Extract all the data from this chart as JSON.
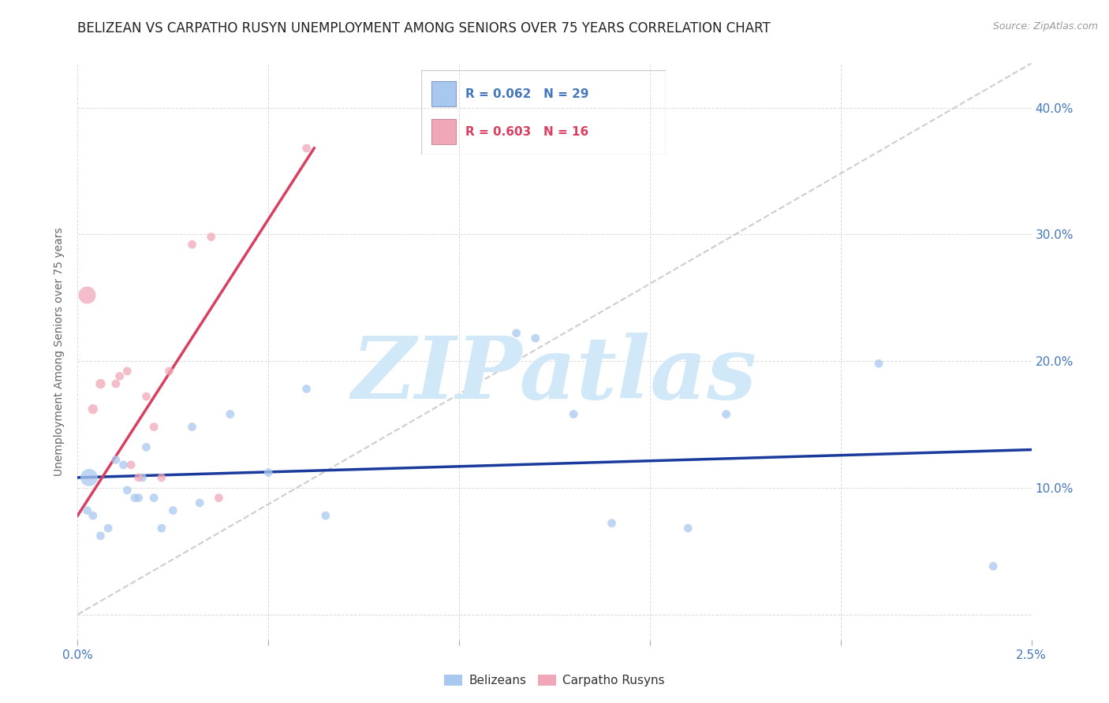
{
  "title": "BELIZEAN VS CARPATHO RUSYN UNEMPLOYMENT AMONG SENIORS OVER 75 YEARS CORRELATION CHART",
  "source": "Source: ZipAtlas.com",
  "ylabel": "Unemployment Among Seniors over 75 years",
  "xlim": [
    0.0,
    0.025
  ],
  "ylim": [
    -0.02,
    0.435
  ],
  "belizean_color": "#a8c8f0",
  "carpatho_color": "#f0a8b8",
  "blue_line_color": "#1a3a9c",
  "pink_line_color": "#d94060",
  "diag_line_color": "#c8c8c8",
  "legend_R_blue": "R = 0.062",
  "legend_N_blue": "N = 29",
  "legend_R_pink": "R = 0.603",
  "legend_N_pink": "N = 16",
  "watermark": "ZIPatlas",
  "watermark_color": "#d0e8f8",
  "belizean_x": [
    0.00025,
    0.0004,
    0.0006,
    0.0008,
    0.001,
    0.0012,
    0.0013,
    0.0015,
    0.0016,
    0.0018,
    0.002,
    0.0022,
    0.0025,
    0.003,
    0.0032,
    0.004,
    0.005,
    0.006,
    0.0065,
    0.0115,
    0.012,
    0.013,
    0.014,
    0.016,
    0.017,
    0.021,
    0.024,
    0.0003,
    0.0017
  ],
  "belizean_y": [
    0.082,
    0.078,
    0.062,
    0.068,
    0.122,
    0.118,
    0.098,
    0.092,
    0.092,
    0.132,
    0.092,
    0.068,
    0.082,
    0.148,
    0.088,
    0.158,
    0.112,
    0.178,
    0.078,
    0.222,
    0.218,
    0.158,
    0.072,
    0.068,
    0.158,
    0.198,
    0.038,
    0.108,
    0.108
  ],
  "belizean_sizes": [
    60,
    60,
    60,
    60,
    60,
    60,
    60,
    60,
    60,
    60,
    60,
    60,
    60,
    60,
    60,
    60,
    60,
    60,
    60,
    60,
    60,
    60,
    60,
    60,
    60,
    60,
    60,
    250,
    60
  ],
  "carpatho_x": [
    0.00025,
    0.0004,
    0.0006,
    0.001,
    0.0011,
    0.0013,
    0.0014,
    0.0016,
    0.0018,
    0.002,
    0.0022,
    0.0024,
    0.003,
    0.0035,
    0.0037,
    0.006
  ],
  "carpatho_y": [
    0.252,
    0.162,
    0.182,
    0.182,
    0.188,
    0.192,
    0.118,
    0.108,
    0.172,
    0.148,
    0.108,
    0.192,
    0.292,
    0.298,
    0.092,
    0.368
  ],
  "carpatho_sizes": [
    250,
    80,
    80,
    60,
    60,
    60,
    60,
    60,
    60,
    60,
    60,
    60,
    60,
    60,
    60,
    60
  ],
  "blue_line_x": [
    0.0,
    0.025
  ],
  "blue_line_y": [
    0.108,
    0.13
  ],
  "pink_line_x": [
    0.0,
    0.0062
  ],
  "pink_line_y": [
    0.078,
    0.368
  ],
  "diag_line_x": [
    0.0,
    0.025
  ],
  "diag_line_y": [
    0.0,
    0.435
  ],
  "xtick_positions": [
    0.0,
    0.005,
    0.01,
    0.015,
    0.02,
    0.025
  ],
  "ytick_positions": [
    0.0,
    0.1,
    0.2,
    0.3,
    0.4
  ],
  "ytick_labels_right": [
    "",
    "10.0%",
    "20.0%",
    "30.0%",
    "40.0%"
  ],
  "xtick_labels": [
    "0.0%",
    "",
    "",
    "",
    "",
    "2.5%"
  ]
}
